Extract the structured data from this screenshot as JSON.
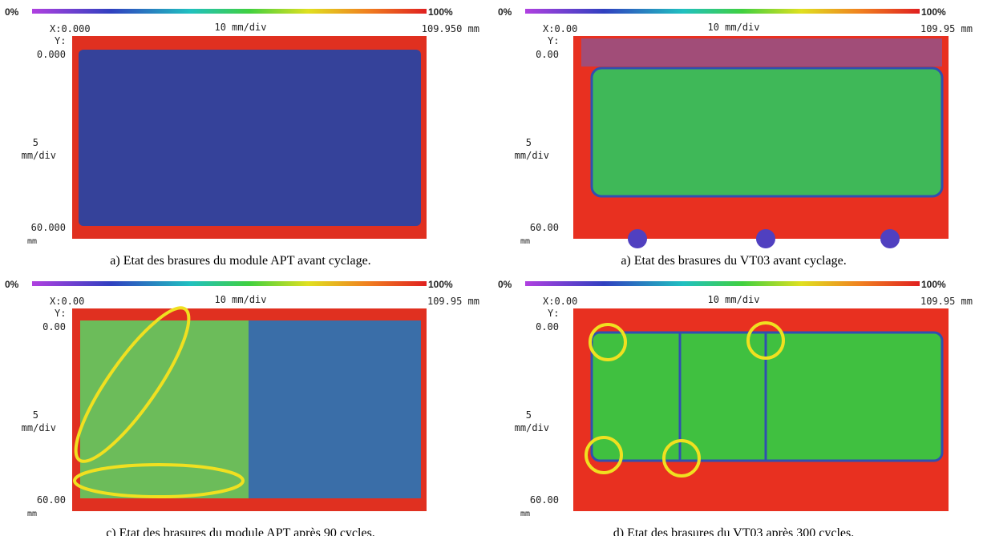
{
  "panels": [
    {
      "scale_min": "0%",
      "scale_max": "100%",
      "x_origin": "X:0.000",
      "x_scale": "10 mm/div",
      "x_end": "109.950 mm",
      "y_axis": "Y:",
      "y_origin": "0.000",
      "y_scale_value": "5",
      "y_scale_unit": "mm/div",
      "y_end": "60.000",
      "y_end_unit": "mm",
      "caption": "a) Etat des brasures du module APT avant cyclage."
    },
    {
      "scale_min": "0%",
      "scale_max": "100%",
      "x_origin": "X:0.00",
      "x_scale": "10 mm/div",
      "x_end": "109.95 mm",
      "y_axis": "Y:",
      "y_origin": "0.00",
      "y_scale_value": "5",
      "y_scale_unit": "mm/div",
      "y_end": "60.00",
      "y_end_unit": "mm",
      "caption": "a) Etat des brasures du VT03 avant cyclage."
    },
    {
      "scale_min": "0%",
      "scale_max": "100%",
      "x_origin": "X:0.00",
      "x_scale": "10 mm/div",
      "x_end": "109.95 mm",
      "y_axis": "Y:",
      "y_origin": "0.00",
      "y_scale_value": "5",
      "y_scale_unit": "mm/div",
      "y_end": "60.00",
      "y_end_unit": "mm",
      "caption": "c) Etat des brasures du module APT après 90 cycles."
    },
    {
      "scale_min": "0%",
      "scale_max": "100%",
      "x_origin": "X:0.00",
      "x_scale": "10 mm/div",
      "x_end": "109.95 mm",
      "y_axis": "Y:",
      "y_origin": "0.00",
      "y_scale_value": "5",
      "y_scale_unit": "mm/div",
      "y_end": "60.00",
      "y_end_unit": "mm",
      "caption": "d) Etat des brasures du VT03 après 300 cycles."
    }
  ]
}
